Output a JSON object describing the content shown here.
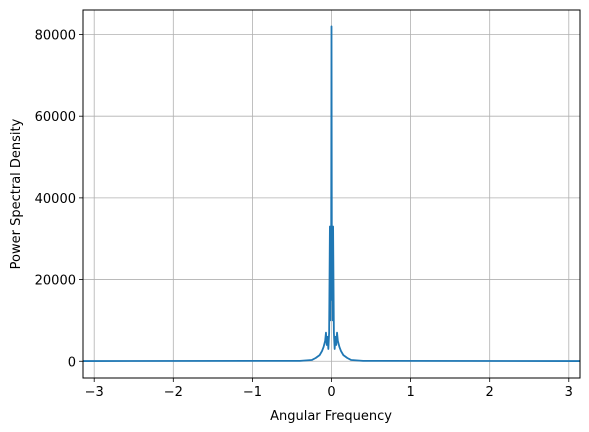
{
  "chart_data": {
    "type": "line",
    "title": "",
    "xlabel": "Angular Frequency",
    "ylabel": "Power Spectral Density",
    "xlim": [
      -3.14159,
      3.14159
    ],
    "ylim": [
      -4100,
      86000
    ],
    "xticks": [
      -3,
      -2,
      -1,
      0,
      1,
      2,
      3
    ],
    "xtick_labels": [
      "−3",
      "−2",
      "−1",
      "0",
      "1",
      "2",
      "3"
    ],
    "yticks": [
      0,
      20000,
      40000,
      60000,
      80000
    ],
    "ytick_labels": [
      "0",
      "20000",
      "40000",
      "60000",
      "80000"
    ],
    "grid": true,
    "color": "#1f77b4",
    "series": [
      {
        "x": [
          -3.14159,
          -0.4,
          -0.25,
          -0.2,
          -0.15,
          -0.12,
          -0.1,
          -0.08,
          -0.07,
          -0.06,
          -0.05,
          -0.04,
          -0.03,
          -0.02,
          -0.015,
          -0.01,
          -0.005,
          0.0,
          0.005,
          0.01,
          0.015,
          0.02,
          0.03,
          0.04,
          0.05,
          0.06,
          0.07,
          0.08,
          0.1,
          0.12,
          0.15,
          0.2,
          0.25,
          0.4,
          3.14159
        ],
        "y": [
          50,
          100,
          300,
          800,
          1500,
          2500,
          3500,
          5000,
          7000,
          4000,
          6000,
          3000,
          7000,
          33000,
          10000,
          33000,
          15000,
          82000,
          15000,
          33000,
          10000,
          33000,
          7000,
          3000,
          6000,
          4000,
          7000,
          5000,
          3500,
          2500,
          1500,
          800,
          300,
          100,
          50
        ]
      }
    ]
  }
}
